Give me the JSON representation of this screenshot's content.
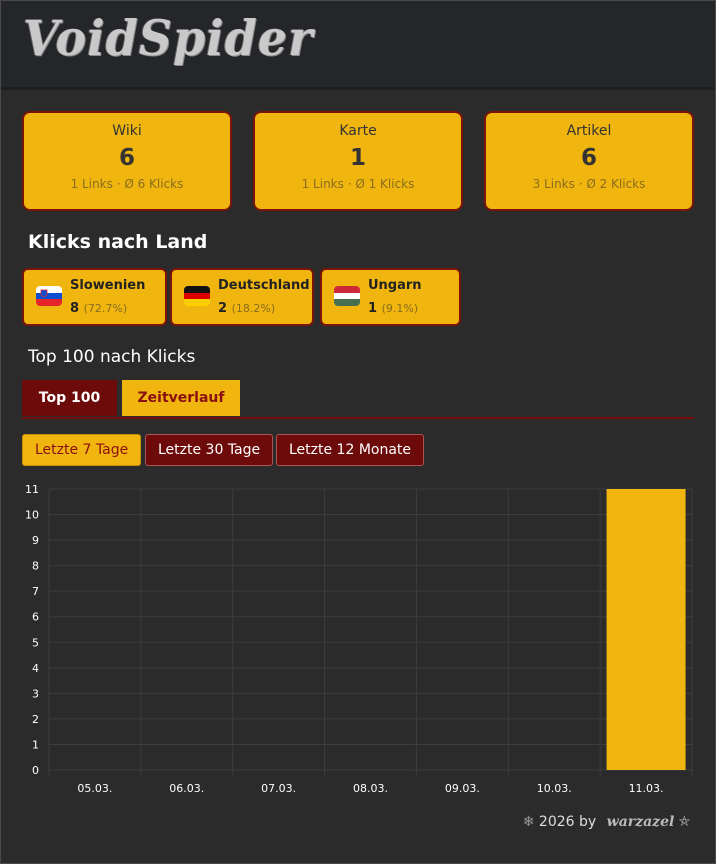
{
  "header": {
    "logo_text": "VoidSpider"
  },
  "cards": [
    {
      "title": "Wiki",
      "value": "6",
      "sub": "1 Links · Ø 6 Klicks"
    },
    {
      "title": "Karte",
      "value": "1",
      "sub": "1 Links · Ø 1 Klicks"
    },
    {
      "title": "Artikel",
      "value": "6",
      "sub": "3 Links · Ø 2 Klicks"
    }
  ],
  "countries_title": "Klicks nach Land",
  "countries": [
    {
      "name": "Slowenien",
      "count": "8",
      "pct": "(72.7%)"
    },
    {
      "name": "Deutschland",
      "count": "2",
      "pct": "(18.2%)"
    },
    {
      "name": "Ungarn",
      "count": "1",
      "pct": "(9.1%)"
    }
  ],
  "top_title": "Top 100 nach Klicks",
  "tabs": {
    "active": "Top 100",
    "inactive": "Zeitverlauf"
  },
  "ranges": [
    "Letzte 7 Tage",
    "Letzte 30 Tage",
    "Letzte 12 Monate"
  ],
  "colors": {
    "accent": "#f0b50f",
    "dark_red": "#6d0a0a"
  },
  "chart_data": {
    "type": "bar",
    "categories": [
      "05.03.",
      "06.03.",
      "07.03.",
      "08.03.",
      "09.03.",
      "10.03.",
      "11.03."
    ],
    "values": [
      0,
      0,
      0,
      0,
      0,
      0,
      11
    ],
    "ylim": [
      0,
      11
    ],
    "yticks": [
      0,
      1,
      2,
      3,
      4,
      5,
      6,
      7,
      8,
      9,
      10,
      11
    ],
    "grid": true
  },
  "footer": {
    "text": "2026 by",
    "brand": "warzazel"
  }
}
